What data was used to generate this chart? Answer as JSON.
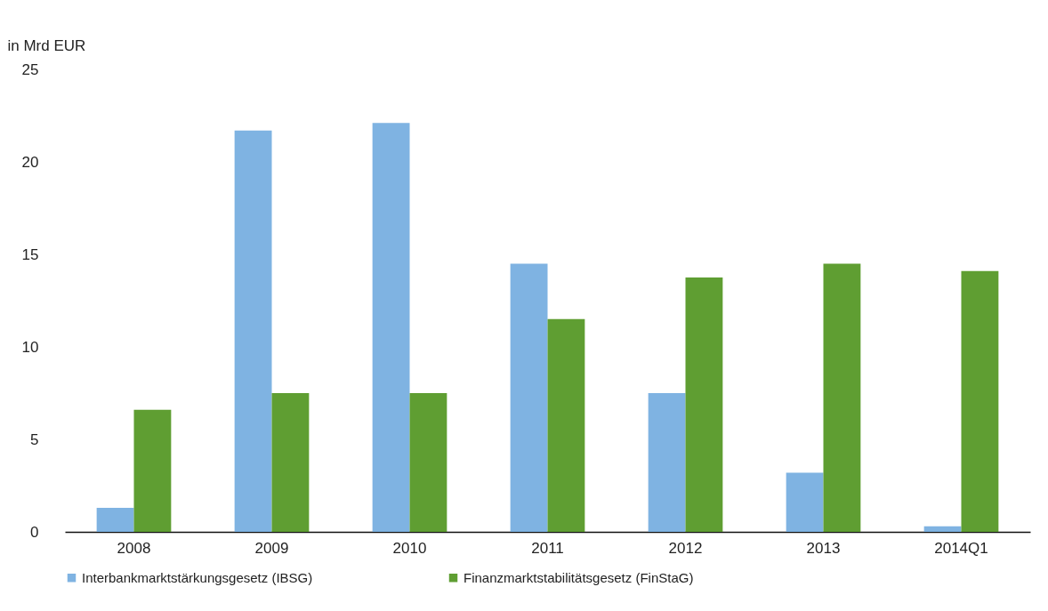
{
  "chart_data": {
    "type": "bar",
    "ylabel": "in Mrd EUR",
    "categories": [
      "2008",
      "2009",
      "2010",
      "2011",
      "2012",
      "2013",
      "2014Q1"
    ],
    "series": [
      {
        "name": "Interbankmarktstärkungsgesetz (IBSG)",
        "color": "#7fb3e2",
        "values": [
          1.3,
          21.7,
          22.1,
          14.5,
          7.5,
          3.2,
          0.3
        ]
      },
      {
        "name": "Finanzmarktstabilitätsgesetz (FinStaG)",
        "color": "#5f9e32",
        "values": [
          6.6,
          7.5,
          7.5,
          11.5,
          13.75,
          14.5,
          14.1
        ]
      }
    ],
    "ylim": [
      0,
      25
    ],
    "yticks": [
      0,
      5,
      10,
      15,
      20,
      25
    ],
    "grid": false,
    "legend": "bottom"
  }
}
